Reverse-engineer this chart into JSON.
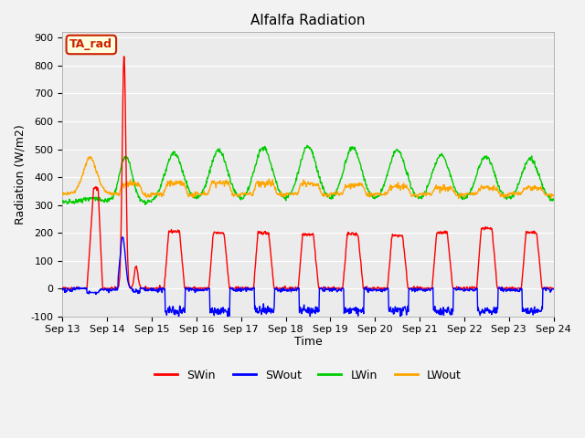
{
  "title": "Alfalfa Radiation",
  "xlabel": "Time",
  "ylabel": "Radiation (W/m2)",
  "ylim": [
    -100,
    920
  ],
  "yticks": [
    -100,
    0,
    100,
    200,
    300,
    400,
    500,
    600,
    700,
    800,
    900
  ],
  "x_tick_labels": [
    "Sep 13",
    "Sep 14",
    "Sep 15",
    "Sep 16",
    "Sep 17",
    "Sep 18",
    "Sep 19",
    "Sep 20",
    "Sep 21",
    "Sep 22",
    "Sep 23",
    "Sep 24"
  ],
  "line_colors": {
    "SWin": "#ff0000",
    "SWout": "#0000ff",
    "LWin": "#00cc00",
    "LWout": "#ffa500"
  },
  "annotation_text": "TA_rad",
  "annotation_facecolor": "#ffffe0",
  "annotation_edgecolor": "#cc2200",
  "bg_color": "#e8e8e8",
  "plot_bg_color": "#ebebeb",
  "grid_color": "#ffffff",
  "fig_bg_color": "#f2f2f2"
}
